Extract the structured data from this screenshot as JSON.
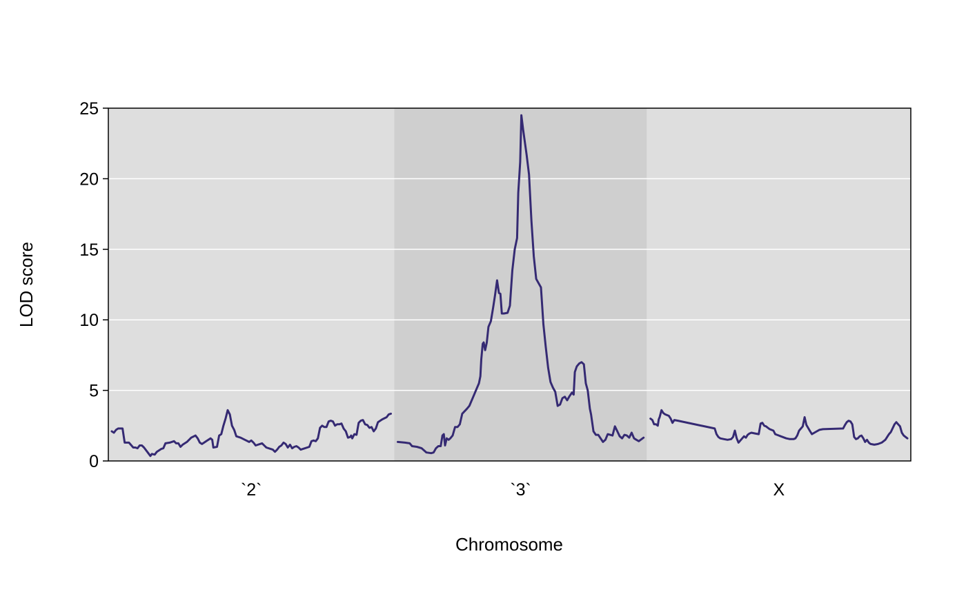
{
  "chart_data": {
    "type": "line",
    "xlabel": "Chromosome",
    "ylabel": "LOD score",
    "ylim": [
      0,
      25
    ],
    "yticks": [
      0,
      5,
      10,
      15,
      20,
      25
    ],
    "grid": "horizontal",
    "panel_colors": {
      "light": "#dedede",
      "dark": "#cfcfcf",
      "gridline": "#ffffff"
    },
    "line_color": "#352a73",
    "chromosomes": [
      {
        "label": "`2`",
        "shade": "light",
        "length": 103,
        "points": [
          [
            0,
            2.1
          ],
          [
            1,
            2.0
          ],
          [
            2,
            2.2
          ],
          [
            3,
            2.3
          ],
          [
            5,
            2.3
          ],
          [
            6,
            1.3
          ],
          [
            8,
            1.3
          ],
          [
            10,
            0.95
          ],
          [
            11,
            0.95
          ],
          [
            12,
            0.9
          ],
          [
            13,
            1.1
          ],
          [
            14,
            1.1
          ],
          [
            15,
            0.95
          ],
          [
            17,
            0.55
          ],
          [
            18,
            0.35
          ],
          [
            18.7,
            0.5
          ],
          [
            20,
            0.45
          ],
          [
            21,
            0.65
          ],
          [
            23,
            0.85
          ],
          [
            24,
            0.9
          ],
          [
            25,
            1.25
          ],
          [
            27,
            1.3
          ],
          [
            29,
            1.4
          ],
          [
            30,
            1.25
          ],
          [
            31,
            1.25
          ],
          [
            32,
            1.0
          ],
          [
            33,
            1.15
          ],
          [
            35,
            1.35
          ],
          [
            37,
            1.65
          ],
          [
            39,
            1.8
          ],
          [
            40,
            1.6
          ],
          [
            41,
            1.3
          ],
          [
            42,
            1.2
          ],
          [
            43,
            1.3
          ],
          [
            44,
            1.4
          ],
          [
            45,
            1.5
          ],
          [
            46,
            1.6
          ],
          [
            46.8,
            1.5
          ],
          [
            47.3,
            0.95
          ],
          [
            49,
            1.0
          ],
          [
            50,
            1.8
          ],
          [
            51,
            1.9
          ],
          [
            52,
            2.5
          ],
          [
            53,
            3.0
          ],
          [
            54,
            3.6
          ],
          [
            55,
            3.3
          ],
          [
            56,
            2.5
          ],
          [
            57,
            2.2
          ],
          [
            58,
            1.75
          ],
          [
            60,
            1.65
          ],
          [
            62,
            1.5
          ],
          [
            64,
            1.35
          ],
          [
            65,
            1.45
          ],
          [
            66,
            1.3
          ],
          [
            67,
            1.1
          ],
          [
            69,
            1.2
          ],
          [
            70,
            1.25
          ],
          [
            71,
            1.1
          ],
          [
            72,
            0.95
          ],
          [
            74,
            0.85
          ],
          [
            75,
            0.8
          ],
          [
            76,
            0.65
          ],
          [
            77,
            0.8
          ],
          [
            78,
            1.0
          ],
          [
            79,
            1.1
          ],
          [
            80,
            1.3
          ],
          [
            81,
            1.2
          ],
          [
            82,
            0.95
          ],
          [
            83,
            1.15
          ],
          [
            84,
            0.9
          ],
          [
            85,
            1.0
          ],
          [
            86,
            1.05
          ],
          [
            87,
            0.95
          ],
          [
            88,
            0.8
          ],
          [
            90,
            0.9
          ],
          [
            92,
            1.0
          ],
          [
            93,
            1.4
          ],
          [
            94,
            1.45
          ],
          [
            95,
            1.4
          ],
          [
            96,
            1.6
          ],
          [
            97,
            2.35
          ],
          [
            98,
            2.5
          ],
          [
            99,
            2.4
          ],
          [
            100,
            2.4
          ],
          [
            101,
            2.8
          ],
          [
            102,
            2.85
          ],
          [
            103,
            2.8
          ],
          [
            104,
            2.5
          ],
          [
            105,
            2.6
          ],
          [
            106,
            2.6
          ],
          [
            107,
            2.65
          ],
          [
            108,
            2.3
          ],
          [
            109,
            2.1
          ],
          [
            110,
            1.65
          ],
          [
            111,
            1.7
          ],
          [
            111.5,
            1.8
          ],
          [
            112,
            1.6
          ],
          [
            113,
            1.9
          ],
          [
            114,
            1.85
          ],
          [
            115,
            2.7
          ],
          [
            116,
            2.85
          ],
          [
            117,
            2.9
          ],
          [
            118,
            2.6
          ],
          [
            119,
            2.55
          ],
          [
            120,
            2.35
          ],
          [
            121,
            2.4
          ],
          [
            122,
            2.1
          ],
          [
            123,
            2.3
          ],
          [
            124,
            2.75
          ],
          [
            126,
            2.95
          ],
          [
            128,
            3.1
          ],
          [
            129,
            3.3
          ],
          [
            130,
            3.35
          ]
        ]
      },
      {
        "label": "`3`",
        "shade": "dark",
        "length": 91,
        "points": [
          [
            0,
            1.35
          ],
          [
            3,
            1.3
          ],
          [
            5,
            1.25
          ],
          [
            6,
            1.05
          ],
          [
            8,
            1.0
          ],
          [
            9,
            0.95
          ],
          [
            10,
            0.9
          ],
          [
            11,
            0.75
          ],
          [
            12,
            0.6
          ],
          [
            14,
            0.55
          ],
          [
            15,
            0.6
          ],
          [
            16,
            0.9
          ],
          [
            17,
            1.05
          ],
          [
            18,
            1.05
          ],
          [
            18.7,
            1.8
          ],
          [
            19.3,
            1.9
          ],
          [
            19.8,
            1.1
          ],
          [
            20.5,
            1.6
          ],
          [
            21.3,
            1.5
          ],
          [
            22,
            1.6
          ],
          [
            23,
            1.8
          ],
          [
            24,
            2.4
          ],
          [
            25,
            2.4
          ],
          [
            26,
            2.6
          ],
          [
            27,
            3.35
          ],
          [
            29,
            3.7
          ],
          [
            30,
            3.9
          ],
          [
            32,
            4.7
          ],
          [
            33,
            5.1
          ],
          [
            34,
            5.5
          ],
          [
            34.6,
            6.0
          ],
          [
            35,
            7.2
          ],
          [
            35.6,
            8.3
          ],
          [
            36,
            8.4
          ],
          [
            36.6,
            7.85
          ],
          [
            37.3,
            8.4
          ],
          [
            38,
            9.5
          ],
          [
            39,
            9.9
          ],
          [
            40,
            10.9
          ],
          [
            40.8,
            11.8
          ],
          [
            41.6,
            12.8
          ],
          [
            42.4,
            11.9
          ],
          [
            43,
            11.85
          ],
          [
            43.6,
            10.45
          ],
          [
            44.5,
            10.45
          ],
          [
            46,
            10.5
          ],
          [
            47,
            11.0
          ],
          [
            48,
            13.5
          ],
          [
            49,
            15.0
          ],
          [
            50,
            15.8
          ],
          [
            50.5,
            19.0
          ],
          [
            51.3,
            21.2
          ],
          [
            51.8,
            24.5
          ],
          [
            52.5,
            23.5
          ],
          [
            54,
            21.7
          ],
          [
            55,
            20.3
          ],
          [
            56,
            17.0
          ],
          [
            57,
            14.5
          ],
          [
            58,
            12.9
          ],
          [
            60,
            12.3
          ],
          [
            61,
            9.7
          ],
          [
            62,
            8.1
          ],
          [
            63,
            6.6
          ],
          [
            64,
            5.6
          ],
          [
            65,
            5.2
          ],
          [
            66,
            4.9
          ],
          [
            67,
            3.9
          ],
          [
            68,
            4.0
          ],
          [
            69,
            4.45
          ],
          [
            70,
            4.55
          ],
          [
            71,
            4.3
          ],
          [
            72,
            4.6
          ],
          [
            73,
            4.85
          ],
          [
            73.7,
            4.7
          ],
          [
            74.2,
            6.3
          ],
          [
            75,
            6.7
          ],
          [
            76,
            6.9
          ],
          [
            77,
            7.0
          ],
          [
            78,
            6.85
          ],
          [
            78.8,
            5.5
          ],
          [
            79.6,
            5.0
          ],
          [
            80.5,
            3.7
          ],
          [
            81,
            3.3
          ],
          [
            82,
            2.1
          ],
          [
            83,
            1.85
          ],
          [
            84,
            1.85
          ],
          [
            85,
            1.6
          ],
          [
            86,
            1.35
          ],
          [
            87,
            1.5
          ],
          [
            88,
            1.9
          ],
          [
            89,
            1.85
          ],
          [
            90,
            1.8
          ],
          [
            91,
            2.45
          ],
          [
            92,
            2.1
          ],
          [
            93,
            1.75
          ],
          [
            94,
            1.6
          ],
          [
            95,
            1.85
          ],
          [
            96,
            1.8
          ],
          [
            97,
            1.65
          ],
          [
            98,
            2.0
          ],
          [
            99,
            1.6
          ],
          [
            100,
            1.5
          ],
          [
            101,
            1.4
          ],
          [
            103,
            1.65
          ]
        ]
      },
      {
        "label": "X",
        "shade": "light",
        "length": 95,
        "points": [
          [
            0,
            3.0
          ],
          [
            1,
            2.9
          ],
          [
            2,
            2.6
          ],
          [
            3,
            2.6
          ],
          [
            4,
            2.5
          ],
          [
            4.5,
            2.95
          ],
          [
            5,
            3.1
          ],
          [
            6,
            3.6
          ],
          [
            7,
            3.4
          ],
          [
            8,
            3.3
          ],
          [
            10,
            3.2
          ],
          [
            11,
            3.0
          ],
          [
            12,
            2.7
          ],
          [
            13,
            2.9
          ],
          [
            15,
            2.85
          ],
          [
            35,
            2.3
          ],
          [
            36,
            1.9
          ],
          [
            37,
            1.7
          ],
          [
            38,
            1.6
          ],
          [
            40,
            1.55
          ],
          [
            42,
            1.5
          ],
          [
            44,
            1.55
          ],
          [
            45,
            1.7
          ],
          [
            46,
            2.15
          ],
          [
            47,
            1.6
          ],
          [
            48,
            1.3
          ],
          [
            49,
            1.45
          ],
          [
            50,
            1.6
          ],
          [
            51,
            1.75
          ],
          [
            52,
            1.65
          ],
          [
            53,
            1.85
          ],
          [
            54,
            1.95
          ],
          [
            55,
            2.0
          ],
          [
            57,
            1.95
          ],
          [
            59,
            1.9
          ],
          [
            60,
            2.65
          ],
          [
            61,
            2.7
          ],
          [
            62,
            2.5
          ],
          [
            63,
            2.45
          ],
          [
            64,
            2.35
          ],
          [
            65,
            2.25
          ],
          [
            67,
            2.15
          ],
          [
            68,
            1.9
          ],
          [
            70,
            1.8
          ],
          [
            71,
            1.75
          ],
          [
            72,
            1.7
          ],
          [
            74,
            1.6
          ],
          [
            76,
            1.55
          ],
          [
            78,
            1.55
          ],
          [
            79,
            1.6
          ],
          [
            80,
            1.8
          ],
          [
            81,
            2.15
          ],
          [
            82,
            2.3
          ],
          [
            83,
            2.45
          ],
          [
            84,
            3.1
          ],
          [
            85,
            2.55
          ],
          [
            87,
            2.1
          ],
          [
            88,
            1.9
          ],
          [
            90,
            2.05
          ],
          [
            92,
            2.2
          ],
          [
            94,
            2.25
          ],
          [
            105,
            2.3
          ],
          [
            106,
            2.55
          ],
          [
            107,
            2.75
          ],
          [
            108,
            2.85
          ],
          [
            109,
            2.8
          ],
          [
            110,
            2.6
          ],
          [
            111,
            1.7
          ],
          [
            112,
            1.55
          ],
          [
            113,
            1.6
          ],
          [
            114,
            1.75
          ],
          [
            115,
            1.8
          ],
          [
            116,
            1.6
          ],
          [
            117,
            1.35
          ],
          [
            118,
            1.5
          ],
          [
            119,
            1.3
          ],
          [
            120,
            1.2
          ],
          [
            122,
            1.15
          ],
          [
            124,
            1.2
          ],
          [
            126,
            1.3
          ],
          [
            128,
            1.5
          ],
          [
            130,
            1.9
          ],
          [
            131,
            2.05
          ],
          [
            133,
            2.6
          ],
          [
            134,
            2.75
          ],
          [
            135,
            2.6
          ],
          [
            136,
            2.45
          ],
          [
            137,
            2.0
          ],
          [
            138,
            1.8
          ],
          [
            140,
            1.6
          ]
        ]
      }
    ]
  }
}
